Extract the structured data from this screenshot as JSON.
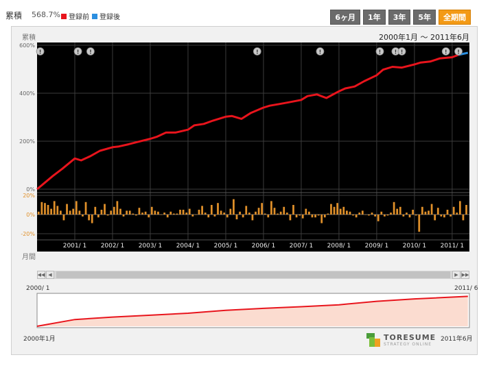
{
  "header": {
    "cumulative_label": "累積",
    "cumulative_value": "568.7%",
    "legend_before": "登録前",
    "legend_after": "登録後",
    "colors": {
      "before": "#e8141c",
      "after": "#2b8fe0"
    },
    "tabs": [
      {
        "label": "6ヶ月",
        "active": false
      },
      {
        "label": "1年",
        "active": false
      },
      {
        "label": "3年",
        "active": false
      },
      {
        "label": "5年",
        "active": false
      },
      {
        "label": "全期間",
        "active": true
      }
    ]
  },
  "range_text": "2000年1月 〜 2011年6月",
  "navigator": {
    "start_label": "2000/ 1",
    "end_label": "2011/ 6",
    "start_label_bottom": "2000年1月",
    "end_label_bottom": "2011年6月"
  },
  "logo": {
    "name": "TORESUME",
    "subtitle": "STRATEGY ONLINE"
  },
  "chart_data": [
    {
      "type": "line",
      "ylabel": "累積",
      "ylim": [
        0,
        600
      ],
      "y_ticks": [
        "600%",
        "400%",
        "200%",
        "0%"
      ],
      "x_ticks": [
        "2001/ 1",
        "2002/ 1",
        "2003/ 1",
        "2004/ 1",
        "2005/ 1",
        "2006/ 1",
        "2007/ 1",
        "2008/ 1",
        "2009/ 1",
        "2010/ 1",
        "2011/ 1"
      ],
      "grid": true,
      "series": [
        {
          "name": "登録前",
          "color": "#e8141c",
          "x": [
            "2000-01",
            "2000-03",
            "2000-06",
            "2000-09",
            "2001-01",
            "2001-03",
            "2001-06",
            "2001-09",
            "2002-01",
            "2002-03",
            "2002-06",
            "2002-09",
            "2003-01",
            "2003-03",
            "2003-06",
            "2003-09",
            "2004-01",
            "2004-03",
            "2004-06",
            "2004-09",
            "2005-01",
            "2005-03",
            "2005-06",
            "2005-09",
            "2006-01",
            "2006-03",
            "2006-06",
            "2006-09",
            "2007-01",
            "2007-03",
            "2007-06",
            "2007-09",
            "2008-01",
            "2008-03",
            "2008-06",
            "2008-09",
            "2009-01",
            "2009-03",
            "2009-06",
            "2009-09",
            "2010-01",
            "2010-03",
            "2010-06",
            "2010-09",
            "2011-01",
            "2011-03"
          ],
          "values": [
            0,
            22,
            55,
            85,
            128,
            120,
            138,
            160,
            175,
            178,
            187,
            197,
            210,
            218,
            236,
            236,
            248,
            266,
            272,
            286,
            302,
            305,
            293,
            318,
            340,
            348,
            355,
            362,
            372,
            388,
            395,
            380,
            408,
            420,
            428,
            450,
            475,
            498,
            510,
            507,
            520,
            528,
            532,
            545,
            550,
            560
          ]
        },
        {
          "name": "登録後",
          "color": "#2b8fe0",
          "x": [
            "2011-03",
            "2011-06"
          ],
          "values": [
            560,
            568.7
          ]
        }
      ],
      "event_markers": [
        "2000-02",
        "2001-02",
        "2001-06",
        "2005-11",
        "2007-07",
        "2009-02",
        "2009-07",
        "2009-09",
        "2010-11",
        "2011-03"
      ]
    },
    {
      "type": "bar",
      "ylabel": "月間",
      "ylim": [
        -25,
        25
      ],
      "y_ticks": [
        "20%",
        "0%",
        "-20%"
      ],
      "color": "#e0902a",
      "start": "2000-01",
      "values": [
        3,
        13,
        12,
        10,
        6,
        14,
        9,
        4,
        -6,
        11,
        4,
        6,
        14,
        4,
        -2,
        13,
        -6,
        -9,
        8,
        -3,
        5,
        11,
        -1,
        4,
        8,
        14,
        6,
        -2,
        4,
        4,
        1,
        -1,
        7,
        2,
        3,
        -3,
        8,
        4,
        3,
        0,
        2,
        -3,
        3,
        1,
        1,
        5,
        5,
        2,
        6,
        -2,
        0,
        5,
        9,
        2,
        -3,
        10,
        -2,
        12,
        4,
        2,
        -3,
        6,
        16,
        -5,
        3,
        -3,
        9,
        2,
        -6,
        3,
        7,
        12,
        1,
        -3,
        14,
        7,
        1,
        3,
        8,
        2,
        -6,
        10,
        -3,
        -1,
        -4,
        6,
        3,
        -3,
        -3,
        -1,
        -9,
        -3,
        1,
        11,
        8,
        12,
        6,
        8,
        4,
        3,
        -1,
        -3,
        2,
        4,
        0,
        -1,
        2,
        -2,
        -7,
        3,
        -2,
        -1,
        2,
        13,
        6,
        8,
        -2,
        2,
        -3,
        5,
        -1,
        -18,
        8,
        3,
        4,
        11,
        -6,
        7,
        -2,
        -3,
        5,
        -2,
        8,
        2,
        14,
        -6,
        10,
        3,
        -3,
        6,
        -5,
        16,
        -2,
        6,
        -6,
        -2,
        7,
        2,
        6,
        2,
        -6,
        7,
        2,
        4,
        -2,
        9,
        -1,
        1,
        4,
        9,
        -2,
        -7,
        10,
        -1,
        -2,
        2,
        2,
        1,
        4,
        1,
        -3,
        6,
        -3,
        3,
        2,
        2,
        -1,
        6,
        4,
        0,
        -2,
        2,
        4,
        -1,
        2,
        5
      ]
    },
    {
      "type": "area",
      "color": "#e8141c",
      "fill": "#fbdcd0",
      "ylim": [
        0,
        600
      ],
      "x": [
        "2000-01",
        "2001-01",
        "2002-01",
        "2003-01",
        "2004-01",
        "2005-01",
        "2006-01",
        "2007-01",
        "2008-01",
        "2009-01",
        "2010-01",
        "2011-06"
      ],
      "values": [
        0,
        128,
        175,
        210,
        248,
        302,
        340,
        372,
        408,
        475,
        520,
        568.7
      ]
    }
  ]
}
